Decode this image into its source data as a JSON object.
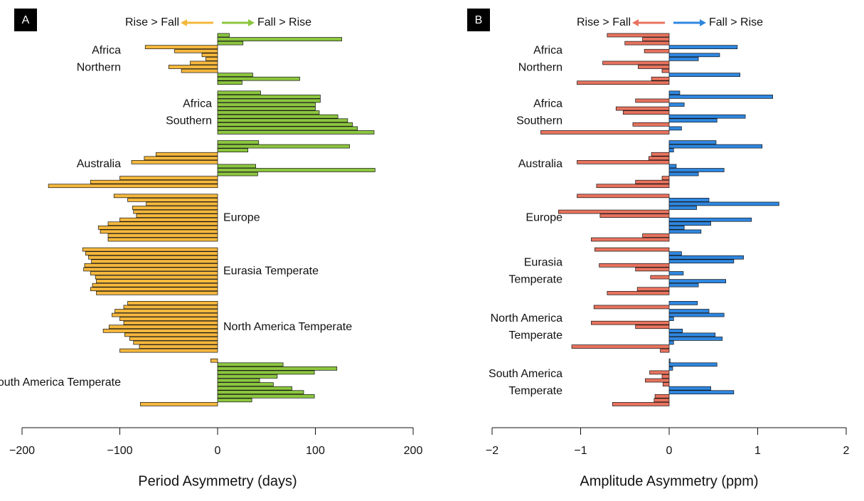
{
  "chart_data": [
    {
      "type": "bar",
      "orientation": "horizontal",
      "panel": "A",
      "legend": {
        "left": "Rise > Fall",
        "right": "Fall > Rise"
      },
      "x_label": "Period Asymmetry (days)",
      "negative_color": "#f5b83d",
      "positive_color": "#8cc63f",
      "label_side": "auto",
      "xlim": [
        -200,
        200
      ],
      "xticks": [
        {
          "value": -200,
          "label": "−200"
        },
        {
          "value": -100,
          "label": "−100"
        },
        0,
        100,
        200
      ],
      "groups": [
        {
          "label": [
            "Africa",
            "Northern"
          ],
          "values": [
            12,
            127,
            26,
            -74,
            -44,
            -16,
            -12,
            -28,
            -50,
            -37,
            36,
            84,
            25
          ]
        },
        {
          "label": [
            "Africa",
            "Southern"
          ],
          "values": [
            44,
            105,
            105,
            100,
            100,
            104,
            123,
            133,
            138,
            143,
            160
          ]
        },
        {
          "label": [
            "Australia"
          ],
          "values": [
            42,
            135,
            31,
            -63,
            -75,
            -88,
            39,
            161,
            41,
            -100,
            -130,
            -173
          ]
        },
        {
          "label": [
            "Europe"
          ],
          "values": [
            -106,
            -92,
            -73,
            -87,
            -86,
            -83,
            -100,
            -112,
            -122,
            -120,
            -112,
            -112
          ]
        },
        {
          "label": [
            "Eurasia Temperate"
          ],
          "values": [
            -138,
            -135,
            -132,
            -129,
            -136,
            -137,
            -130,
            -125,
            -124,
            -128,
            -130,
            -124
          ]
        },
        {
          "label": [
            "North America Temperate"
          ],
          "values": [
            -92,
            -96,
            -105,
            -108,
            -100,
            -96,
            -111,
            -117,
            -95,
            -90,
            -86,
            -80,
            -100
          ]
        },
        {
          "label": [
            "South America Temperate"
          ],
          "values": [
            -7,
            67,
            122,
            99,
            61,
            43,
            57,
            76,
            88,
            99,
            35,
            -79
          ]
        }
      ]
    },
    {
      "type": "bar",
      "orientation": "horizontal",
      "panel": "B",
      "legend": {
        "left": "Rise > Fall",
        "right": "Fall > Rise"
      },
      "x_label": "Amplitude Asymmetry (ppm)",
      "negative_color": "#e8735e",
      "positive_color": "#2f87e0",
      "label_side": "left",
      "xlim": [
        -2,
        2
      ],
      "xticks": [
        {
          "value": -2,
          "label": "−2"
        },
        {
          "value": -1,
          "label": "−1"
        },
        0,
        1,
        2
      ],
      "groups": [
        {
          "label": [
            "Africa",
            "Northern"
          ],
          "values": [
            -0.7,
            -0.3,
            -0.5,
            0.77,
            -0.28,
            0.57,
            0.33,
            -0.75,
            -0.35,
            -0.08,
            0.8,
            -0.2,
            -1.04
          ]
        },
        {
          "label": [
            "Africa",
            "Southern"
          ],
          "values": [
            0.12,
            1.17,
            -0.38,
            0.17,
            -0.6,
            -0.52,
            0.86,
            0.54,
            -0.41,
            0.14,
            -1.45
          ]
        },
        {
          "label": [
            "Australia"
          ],
          "values": [
            0.53,
            1.05,
            0.05,
            -0.2,
            -0.23,
            -1.04,
            0.08,
            0.62,
            0.33,
            -0.08,
            -0.38,
            -0.82
          ]
        },
        {
          "label": [
            "Europe"
          ],
          "values": [
            -1.04,
            0.45,
            1.24,
            0.31,
            -1.25,
            -0.78,
            0.93,
            0.47,
            0.17,
            0.36,
            -0.3,
            -0.88
          ]
        },
        {
          "label": [
            "Eurasia",
            "Temperate"
          ],
          "values": [
            -0.84,
            0.14,
            0.84,
            0.73,
            -0.79,
            -0.38,
            0.16,
            -0.21,
            0.64,
            0.33,
            -0.36,
            -0.7
          ]
        },
        {
          "label": [
            "North America",
            "Temperate"
          ],
          "values": [
            0.32,
            -0.85,
            0.45,
            0.62,
            0.05,
            -0.88,
            -0.38,
            0.15,
            0.52,
            0.6,
            0.05,
            -1.1,
            -0.1
          ]
        },
        {
          "label": [
            "South America",
            "Temperate"
          ],
          "values": [
            0.01,
            0.54,
            0.04,
            -0.22,
            -0.08,
            -0.27,
            -0.07,
            0.47,
            0.73,
            -0.16,
            -0.17,
            -0.64
          ]
        }
      ]
    }
  ]
}
